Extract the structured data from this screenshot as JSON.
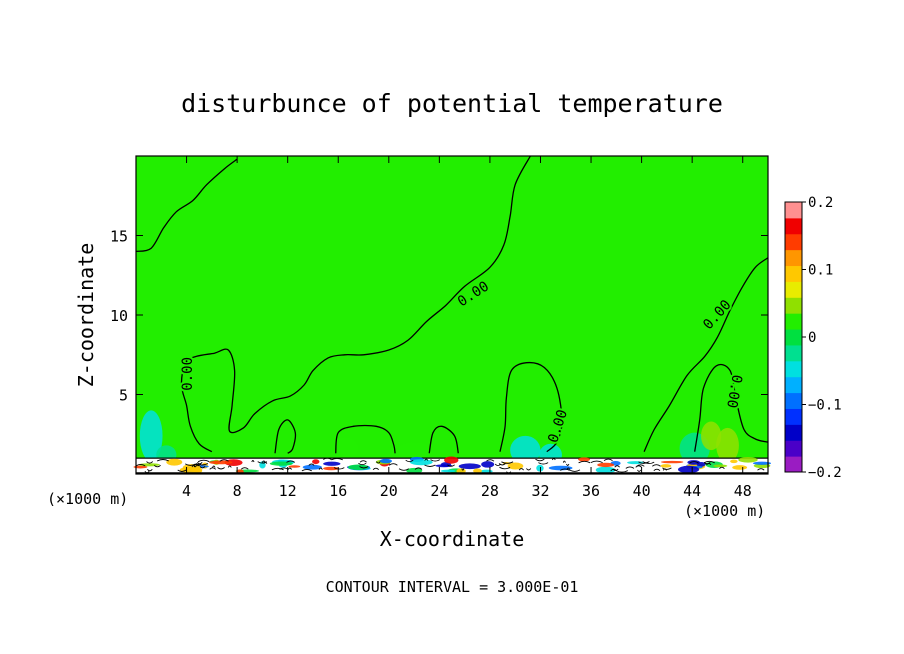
{
  "chart_data": {
    "type": "heatmap",
    "title": "disturbunce of potential temperature",
    "xlabel": "X-coordinate",
    "ylabel": "Z-coordinate",
    "x_unit": "(×1000 m)",
    "x_ticks": [
      4,
      8,
      12,
      16,
      20,
      24,
      28,
      32,
      36,
      40,
      44,
      48
    ],
    "y_ticks": [
      5,
      10,
      15
    ],
    "xlim": [
      0,
      50
    ],
    "ylim": [
      0,
      20
    ],
    "footer": "CONTOUR INTERVAL = 3.000E-01",
    "contour_label": "0.00",
    "colorbar": {
      "ticks": [
        "0.2",
        "0.1",
        "0",
        "−0.1",
        "−0.2"
      ],
      "tick_values": [
        0.2,
        0.1,
        0,
        -0.1,
        -0.2
      ],
      "range": [
        -0.2,
        0.2
      ],
      "levels": [
        {
          "value": -0.2,
          "color": "#9a1cc2"
        },
        {
          "value": -0.175,
          "color": "#4a00c8"
        },
        {
          "value": -0.15,
          "color": "#0000c8"
        },
        {
          "value": -0.125,
          "color": "#0030ff"
        },
        {
          "value": -0.1,
          "color": "#0070ff"
        },
        {
          "value": -0.075,
          "color": "#00b0ff"
        },
        {
          "value": -0.05,
          "color": "#00e0e0"
        },
        {
          "value": -0.025,
          "color": "#00e090"
        },
        {
          "value": 0,
          "color": "#00e040"
        },
        {
          "value": 0.025,
          "color": "#22ee00"
        },
        {
          "value": 0.05,
          "color": "#90e000"
        },
        {
          "value": 0.075,
          "color": "#e8ec00"
        },
        {
          "value": 0.1,
          "color": "#ffc800"
        },
        {
          "value": 0.125,
          "color": "#ff9600"
        },
        {
          "value": 0.15,
          "color": "#ff3c00"
        },
        {
          "value": 0.175,
          "color": "#f00000"
        },
        {
          "value": 0.2,
          "color": "#ff9090"
        }
      ]
    },
    "background_value": 0.01,
    "field_color": "#22ee00"
  }
}
